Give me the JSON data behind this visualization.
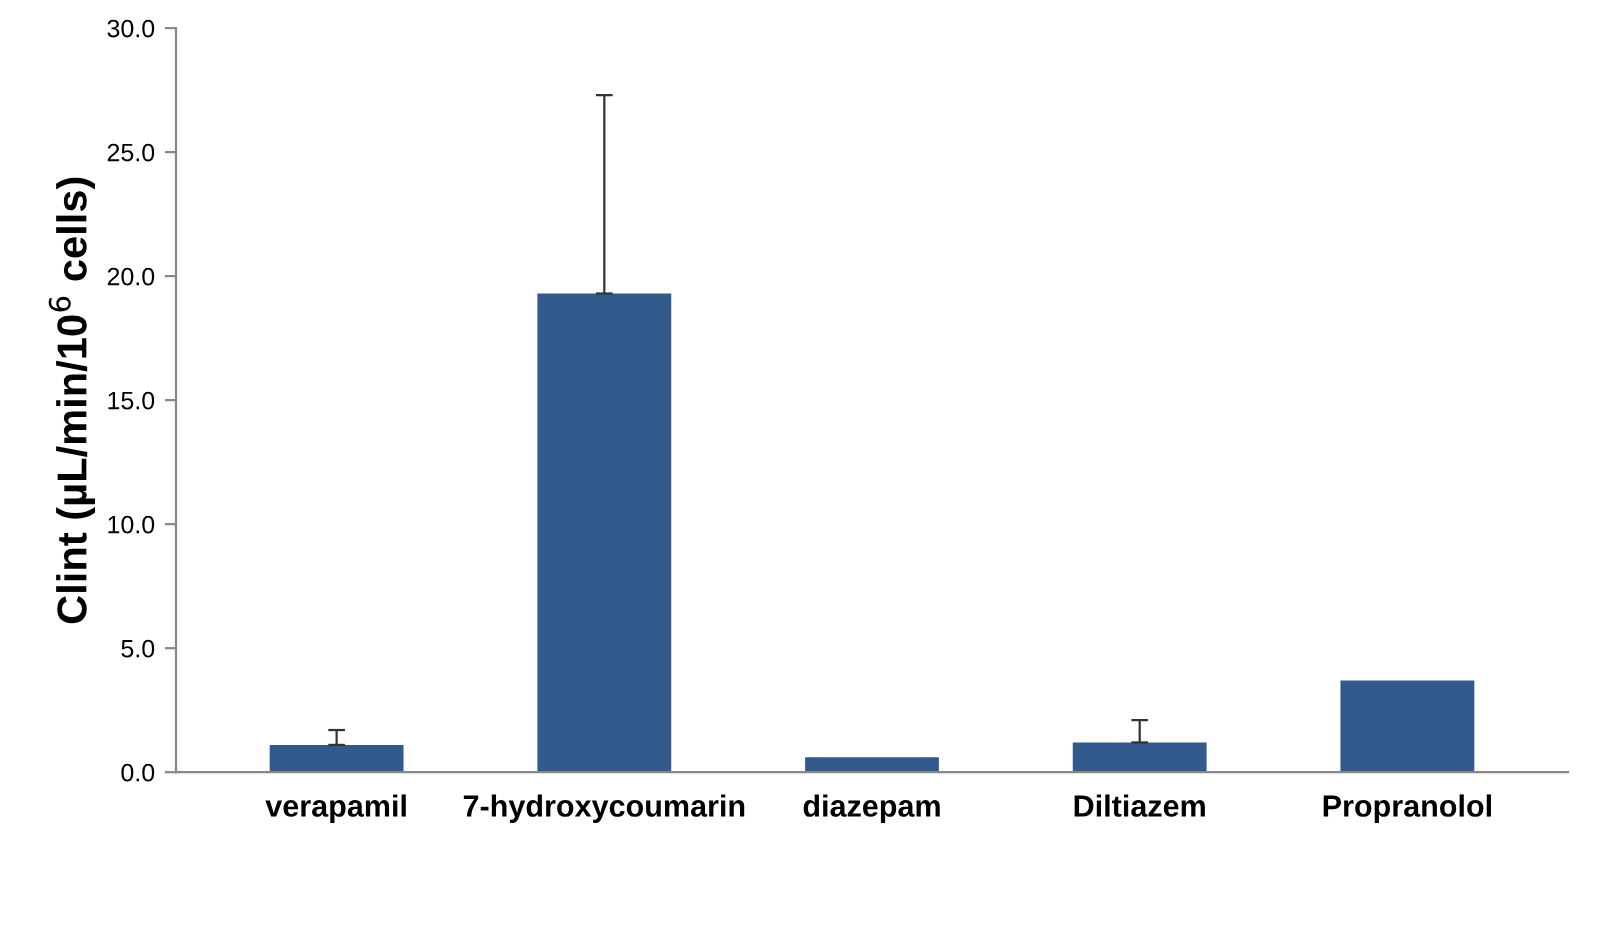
{
  "chart_data": {
    "type": "bar",
    "ylabel": "Clint (µL/min/10$^{6}$ cells)",
    "categories": [
      "verapamil",
      "7-hydroxycoumarin",
      "diazepam",
      "Diltiazem",
      "Propranolol"
    ],
    "values": [
      1.1,
      19.3,
      0.6,
      1.2,
      3.7
    ],
    "errors": [
      [
        1.1,
        1.7
      ],
      [
        19.3,
        27.3
      ],
      null,
      [
        1.2,
        2.1
      ],
      null
    ],
    "color": "#335a8c",
    "ylim": [
      0,
      30
    ],
    "yticks": [
      {
        "value": 0,
        "label": "0.0"
      },
      {
        "value": 5,
        "label": "5.0"
      },
      {
        "value": 10,
        "label": "10.0"
      },
      {
        "value": 15,
        "label": "15.0"
      },
      {
        "value": 20,
        "label": "20.0"
      },
      {
        "value": 25,
        "label": "25.0"
      },
      {
        "value": 30,
        "label": "30.0"
      }
    ],
    "grid": false
  }
}
